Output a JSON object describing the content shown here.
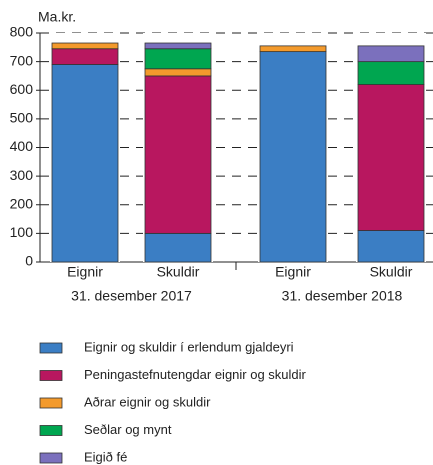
{
  "chart_data": {
    "type": "stacked_bar",
    "y_label": "Ma.kr.",
    "categories": [
      "Eignir",
      "Skuldir",
      "Eignir",
      "Skuldir"
    ],
    "groups": [
      "31. desember 2017",
      "31. desember 2018"
    ],
    "series": [
      {
        "name": "Eignir og skuldir í erlendum gjaldeyri",
        "color": "#3b7ec4",
        "values": [
          690,
          100,
          735,
          110
        ]
      },
      {
        "name": "Peningastefnutengdar eignir og skuldir",
        "color": "#b8175f",
        "values": [
          55,
          550,
          0,
          510
        ]
      },
      {
        "name": "Aðrar eignir og skuldir",
        "color": "#f39a2c",
        "values": [
          20,
          25,
          20,
          0
        ]
      },
      {
        "name": "Seðlar og mynt",
        "color": "#00a650",
        "values": [
          0,
          70,
          0,
          80
        ]
      },
      {
        "name": "Eigið fé",
        "color": "#7b70bd",
        "values": [
          0,
          20,
          0,
          55
        ]
      }
    ],
    "ylim": [
      0,
      800
    ],
    "yticks": [
      0,
      100,
      200,
      300,
      400,
      500,
      600,
      700,
      800
    ],
    "grid": true
  }
}
